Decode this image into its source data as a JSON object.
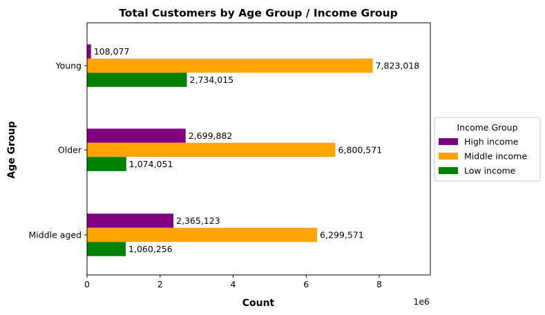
{
  "chart_data": {
    "type": "bar",
    "orientation": "horizontal",
    "title": "Total Customers by Age Group / Income Group",
    "xlabel": "Count",
    "ylabel": "Age Group",
    "x_offset_label": "1e6",
    "xlim": [
      0,
      9400000
    ],
    "x_ticks": [
      0,
      2000000,
      4000000,
      6000000,
      8000000
    ],
    "x_tick_labels": [
      "0",
      "2",
      "4",
      "6",
      "8"
    ],
    "categories": [
      "Young",
      "Older",
      "Middle aged"
    ],
    "legend_title": "Income Group",
    "legend_position": "right",
    "grid": false,
    "series": [
      {
        "name": "High income",
        "color": "#800080",
        "values": [
          108077,
          2699882,
          2365123
        ],
        "labels": [
          "108,077",
          "2,699,882",
          "2,365,123"
        ]
      },
      {
        "name": "Middle income",
        "color": "#FFA500",
        "values": [
          7823018,
          6800571,
          6299571
        ],
        "labels": [
          "7,823,018",
          "6,800,571",
          "6,299,571"
        ]
      },
      {
        "name": "Low income",
        "color": "#008000",
        "values": [
          2734015,
          1074051,
          1060256
        ],
        "labels": [
          "2,734,015",
          "1,074,051",
          "1,060,256"
        ]
      }
    ]
  }
}
